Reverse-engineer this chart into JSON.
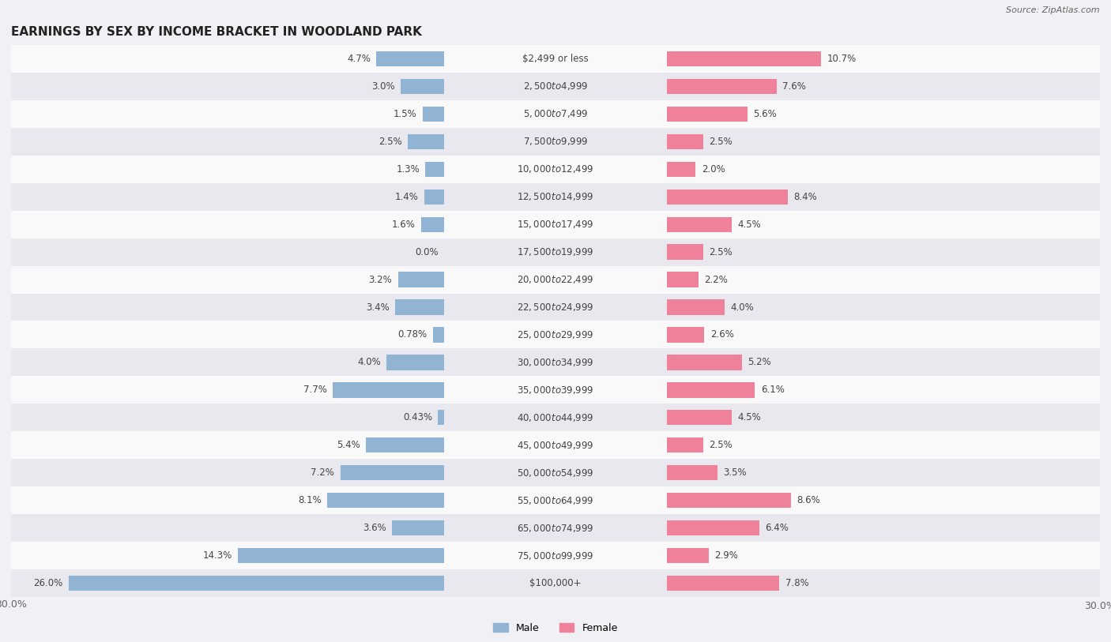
{
  "title": "EARNINGS BY SEX BY INCOME BRACKET IN WOODLAND PARK",
  "source": "Source: ZipAtlas.com",
  "categories": [
    "$2,499 or less",
    "$2,500 to $4,999",
    "$5,000 to $7,499",
    "$7,500 to $9,999",
    "$10,000 to $12,499",
    "$12,500 to $14,999",
    "$15,000 to $17,499",
    "$17,500 to $19,999",
    "$20,000 to $22,499",
    "$22,500 to $24,999",
    "$25,000 to $29,999",
    "$30,000 to $34,999",
    "$35,000 to $39,999",
    "$40,000 to $44,999",
    "$45,000 to $49,999",
    "$50,000 to $54,999",
    "$55,000 to $64,999",
    "$65,000 to $74,999",
    "$75,000 to $99,999",
    "$100,000+"
  ],
  "male_values": [
    4.7,
    3.0,
    1.5,
    2.5,
    1.3,
    1.4,
    1.6,
    0.0,
    3.2,
    3.4,
    0.78,
    4.0,
    7.7,
    0.43,
    5.4,
    7.2,
    8.1,
    3.6,
    14.3,
    26.0
  ],
  "female_values": [
    10.7,
    7.6,
    5.6,
    2.5,
    2.0,
    8.4,
    4.5,
    2.5,
    2.2,
    4.0,
    2.6,
    5.2,
    6.1,
    4.5,
    2.5,
    3.5,
    8.6,
    6.4,
    2.9,
    7.8
  ],
  "male_color": "#92b4d4",
  "female_color": "#f0819a",
  "male_label": "Male",
  "female_label": "Female",
  "axis_max": 30.0,
  "bg_color": "#f0f0f5",
  "row_light": "#f9f9f9",
  "row_dark": "#e8e8ee",
  "label_fontsize": 8.5,
  "title_fontsize": 11,
  "category_fontsize": 8.5,
  "center_label_color": "#444444",
  "value_label_color": "#444444"
}
